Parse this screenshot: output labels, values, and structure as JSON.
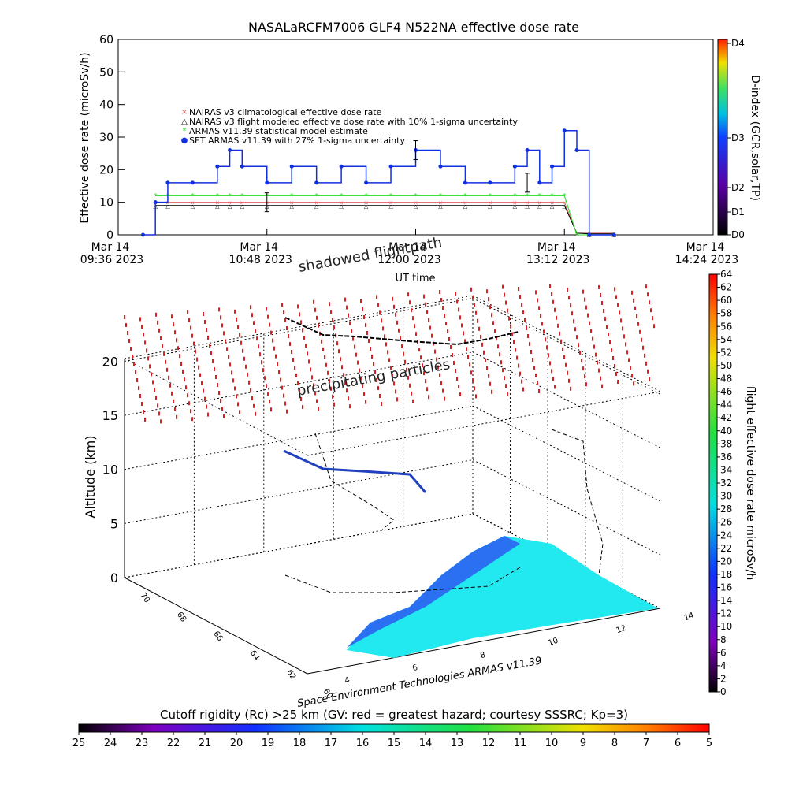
{
  "title": "NASALaRCFM7006   GLF4 N522NA effective dose rate",
  "top_chart": {
    "ylabel": "Effective dose rate (microSv/h)",
    "xlabel": "UT time",
    "yticks": [
      "0",
      "10",
      "20",
      "30",
      "40",
      "50",
      "60"
    ],
    "xticks": [
      {
        "line1": "Mar 14",
        "line2": "09:36 2023"
      },
      {
        "line1": "Mar 14",
        "line2": "10:48 2023"
      },
      {
        "line1": "Mar 14",
        "line2": "12:00 2023"
      },
      {
        "line1": "Mar 14",
        "line2": "13:12 2023"
      },
      {
        "line1": "Mar 14",
        "line2": "14:24 2023"
      }
    ],
    "legend": [
      {
        "label": "NAIRAS v3 climatological effective dose rate",
        "color": "#e06060",
        "marker": "x"
      },
      {
        "label": "NAIRAS v3 flight modeled effective dose rate with 10% 1-sigma uncertainty",
        "color": "#000000",
        "marker": "triangle"
      },
      {
        "label": "ARMAS v11.39 statistical model estimate",
        "color": "#22dd22",
        "marker": "asterisk"
      },
      {
        "label": "SET ARMAS v11.39 with 27% 1-sigma uncertainty",
        "color": "#1030e0",
        "marker": "dot"
      }
    ],
    "dindex_label": "D-index (GCR,solar,TP)",
    "dindex_ticks": [
      "D0",
      "D1",
      "D2",
      "D3",
      "D4"
    ]
  },
  "chart_data": [
    {
      "type": "line",
      "x_unit": "UT time, Mar 14 2023",
      "x": [
        "09:36",
        "09:48",
        "09:54",
        "10:00",
        "10:12",
        "10:24",
        "10:30",
        "10:36",
        "10:48",
        "11:00",
        "11:12",
        "11:24",
        "11:36",
        "11:48",
        "12:00",
        "12:12",
        "12:24",
        "12:36",
        "12:48",
        "12:54",
        "13:00",
        "13:06",
        "13:12",
        "13:18",
        "13:24",
        "13:36"
      ],
      "ylim": [
        0,
        60
      ],
      "series": [
        {
          "name": "NAIRAS v3 climatological effective dose rate",
          "values": [
            null,
            null,
            10,
            10,
            10,
            10,
            10,
            10,
            10,
            10,
            10,
            10,
            10,
            10,
            10,
            10,
            10,
            10,
            10,
            10,
            10,
            10,
            10,
            0.5,
            0.5,
            0.5
          ]
        },
        {
          "name": "NAIRAS v3 flight modeled effective dose rate with 10% 1-sigma uncertainty",
          "values": [
            null,
            null,
            9,
            9,
            9,
            9,
            9,
            9,
            9,
            9,
            9,
            9,
            9,
            9,
            9,
            9,
            9,
            9,
            9,
            9,
            9,
            9,
            9,
            0.5,
            0.3,
            0.3
          ]
        },
        {
          "name": "ARMAS v11.39 statistical model estimate",
          "values": [
            null,
            null,
            12,
            12,
            12,
            12,
            12,
            12,
            12,
            12,
            12,
            12,
            12,
            12,
            12,
            12,
            12,
            12,
            12,
            12,
            12,
            12,
            12,
            0,
            0,
            0
          ]
        },
        {
          "name": "SET ARMAS v11.39 with 27% 1-sigma uncertainty",
          "values": [
            null,
            0,
            10,
            16,
            16,
            21,
            26,
            21,
            16,
            21,
            16,
            21,
            16,
            21,
            26,
            21,
            16,
            16,
            21,
            26,
            16,
            21,
            32,
            26,
            0,
            0
          ]
        }
      ]
    },
    {
      "type": "scatter",
      "zlabel": "Altitude (km)",
      "zticks": [
        "0",
        "5",
        "10",
        "15",
        "20"
      ],
      "x_ticks": [
        "4",
        "6",
        "8",
        "10",
        "12",
        "14"
      ],
      "y_ticks": [
        "60",
        "62",
        "64",
        "66",
        "68",
        "70"
      ],
      "annotations": [
        "shadowed flightpath",
        "precipitating particles"
      ],
      "flight_alt_km": [
        12,
        10,
        10,
        10,
        9,
        8,
        7,
        6,
        5
      ]
    }
  ],
  "dose_colorbar": {
    "label": "flight effective dose rate microSv/h",
    "ticks": [
      "0",
      "2",
      "4",
      "6",
      "8",
      "10",
      "12",
      "14",
      "16",
      "18",
      "20",
      "22",
      "24",
      "26",
      "28",
      "30",
      "32",
      "34",
      "36",
      "38",
      "40",
      "42",
      "44",
      "46",
      "48",
      "50",
      "52",
      "54",
      "56",
      "58",
      "60",
      "62",
      "64"
    ]
  },
  "credit": "Space Environment Technologies ARMAS v11.39",
  "rigidity_bar": {
    "title": "Cutoff rigidity (Rc) >25 km (GV: red = greatest hazard; courtesy SSSRC; Kp=3)",
    "ticks": [
      "25",
      "24",
      "23",
      "22",
      "21",
      "20",
      "19",
      "18",
      "17",
      "16",
      "15",
      "14",
      "13",
      "12",
      "11",
      "10",
      "9",
      "8",
      "7",
      "6",
      "5"
    ]
  },
  "colors": {
    "armas": "#1030e0",
    "model": "#22dd22",
    "nairas": "#e06060",
    "frame": "#000000"
  }
}
